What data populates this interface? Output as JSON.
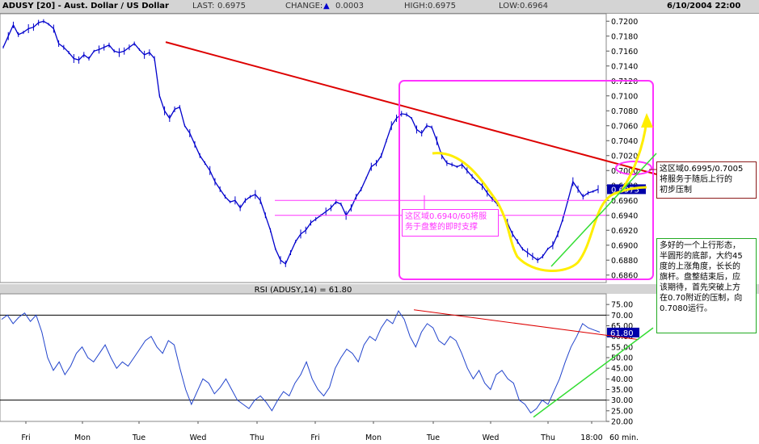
{
  "header": {
    "title": "ADUSY [20] - Aust. Dollar / US Dollar",
    "last_label": "LAST:",
    "last_value": "0.6975",
    "change_label": "CHANGE:",
    "change_value": "0.0003",
    "high_label": "HIGH:",
    "high_value": "0.6975",
    "low_label": "LOW:",
    "low_value": "0.6964",
    "datetime": "6/10/2004 22:00"
  },
  "colors": {
    "price": "#0000cc",
    "rsi": "#2244cc",
    "resistance": "#dd0000",
    "support_box": "#ff33ff",
    "trend": "#33dd33",
    "highlight": "#ffee00",
    "last_tag": "#0000aa"
  },
  "chart_data": [
    {
      "type": "line",
      "ylim": [
        0.685,
        0.721
      ],
      "y_ticks": [
        "0.7200",
        "0.7180",
        "0.7160",
        "0.7140",
        "0.7120",
        "0.7100",
        "0.7080",
        "0.7060",
        "0.7040",
        "0.7020",
        "0.7000",
        "0.6980",
        "0.6960",
        "0.6940",
        "0.6920",
        "0.6900",
        "0.6880",
        "0.6860"
      ],
      "last_tag": "0.6975",
      "x_labels": [
        "Fri",
        "Mon",
        "Tue",
        "Wed",
        "Thu",
        "Fri",
        "Mon",
        "Tue",
        "Wed",
        "Thu",
        "18:00",
        "60 min."
      ],
      "series": [
        {
          "values": [
            0.7165,
            0.718,
            0.7195,
            0.7182,
            0.7185,
            0.719,
            0.7192,
            0.7198,
            0.72,
            0.7196,
            0.719,
            0.717,
            0.7165,
            0.7158,
            0.715,
            0.7148,
            0.7155,
            0.715,
            0.716,
            0.7162,
            0.7165,
            0.7168,
            0.716,
            0.7158,
            0.716,
            0.7165,
            0.717,
            0.7162,
            0.7155,
            0.7158,
            0.715,
            0.71,
            0.708,
            0.707,
            0.7082,
            0.7085,
            0.706,
            0.705,
            0.7035,
            0.702,
            0.701,
            0.7,
            0.6985,
            0.6975,
            0.6965,
            0.6958,
            0.696,
            0.695,
            0.696,
            0.6965,
            0.6968,
            0.696,
            0.694,
            0.692,
            0.6895,
            0.688,
            0.6875,
            0.689,
            0.6905,
            0.6915,
            0.692,
            0.693,
            0.6935,
            0.694,
            0.6945,
            0.695,
            0.6958,
            0.6955,
            0.694,
            0.695,
            0.6965,
            0.6975,
            0.699,
            0.7005,
            0.701,
            0.702,
            0.704,
            0.706,
            0.707,
            0.7076,
            0.7075,
            0.707,
            0.7055,
            0.705,
            0.706,
            0.7058,
            0.704,
            0.702,
            0.701,
            0.7008,
            0.7005,
            0.7008,
            0.7,
            0.6992,
            0.6985,
            0.698,
            0.697,
            0.6962,
            0.6955,
            0.6945,
            0.693,
            0.6915,
            0.6905,
            0.6895,
            0.689,
            0.6885,
            0.688,
            0.6885,
            0.6895,
            0.69,
            0.6915,
            0.6935,
            0.696,
            0.6985,
            0.6975,
            0.6965,
            0.697,
            0.6972,
            0.6975
          ]
        },
        {
          "name": "RSI (ADUSY,14) = 61.80",
          "ylim": [
            20,
            80
          ],
          "y_ticks": [
            "75.00",
            "70.00",
            "65.00",
            "60.00",
            "55.00",
            "50.00",
            "45.00",
            "40.00",
            "35.00",
            "30.00",
            "25.00",
            "20.00"
          ],
          "last_tag": "61.80",
          "reference_lines": [
            70,
            30
          ],
          "values": [
            68,
            70,
            66,
            69,
            71,
            67,
            70,
            62,
            50,
            44,
            48,
            42,
            46,
            52,
            55,
            50,
            48,
            52,
            56,
            50,
            45,
            48,
            46,
            50,
            54,
            58,
            60,
            55,
            52,
            58,
            56,
            45,
            35,
            28,
            34,
            40,
            38,
            33,
            36,
            40,
            35,
            30,
            28,
            26,
            30,
            32,
            29,
            25,
            30,
            34,
            32,
            38,
            42,
            48,
            40,
            35,
            32,
            36,
            45,
            50,
            54,
            52,
            48,
            56,
            60,
            58,
            64,
            68,
            66,
            72,
            68,
            60,
            55,
            62,
            66,
            64,
            58,
            56,
            60,
            58,
            52,
            45,
            40,
            44,
            38,
            35,
            42,
            44,
            40,
            38,
            30,
            28,
            24,
            26,
            30,
            28,
            34,
            40,
            48,
            55,
            60,
            66,
            64,
            63,
            62
          ]
        }
      ]
    }
  ],
  "annotations": {
    "support_note": "这区域0.6940/60将服\n务于盘整的即时支撑",
    "resistance_note": "这区域0.6995/0.7005\n将服务于随后上行的\n初步压制",
    "outlook_note": "多好的一个上行形态，\n半圆形的底部，大约45\n度的上涨角度，长长的\n旗杆。盘整结束后，应\n该期待，首先突破上方\n在0.70附近的压制，向\n0.7080运行。"
  }
}
